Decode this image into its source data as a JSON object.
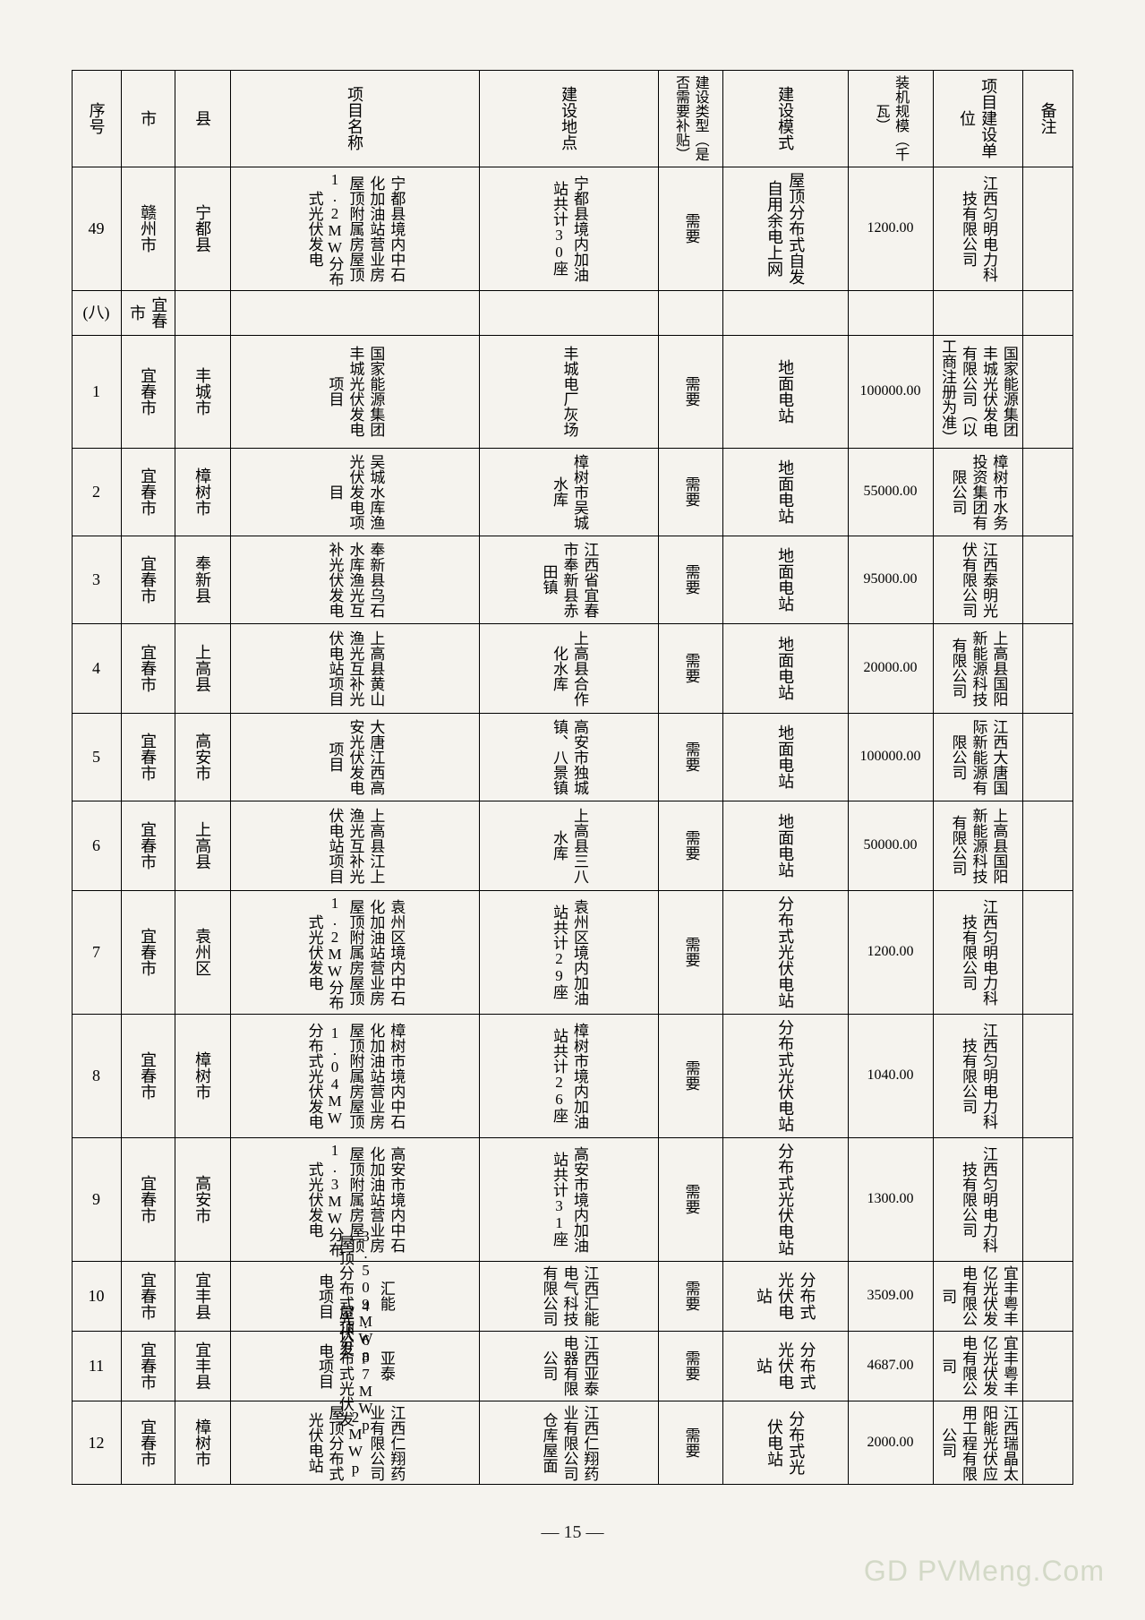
{
  "page_number_label": "— 15 —",
  "watermark": "GD PVMeng.Com",
  "columns": [
    "序号",
    "市",
    "县",
    "项目名称",
    "建设地点",
    "建设类型（是否需要补贴）",
    "建设模式",
    "装机规模（千瓦）",
    "项目建设单位",
    "备注"
  ],
  "rows": [
    {
      "seq": "49",
      "city": "赣州市",
      "county": "宁都县",
      "project": "宁都县境内中石化加油站营业房屋顶附属房屋顶1.2MW分布式光伏发电",
      "site": "宁都县境内加油站共计30座",
      "type": "需要",
      "mode": "屋顶分布式自发自用余电上网",
      "cap": "1200.00",
      "unit": "江西匀明电力科技有限公司",
      "note": ""
    },
    {
      "seq": "(八)",
      "city": "宜春市",
      "county": "",
      "project": "",
      "site": "",
      "type": "",
      "mode": "",
      "cap": "",
      "unit": "",
      "note": ""
    },
    {
      "seq": "1",
      "city": "宜春市",
      "county": "丰城市",
      "project": "国家能源集团丰城光伏发电项目",
      "site": "丰城电厂灰场",
      "type": "需要",
      "mode": "地面电站",
      "cap": "100000.00",
      "unit": "国家能源集团丰城光伏发电有限公司（以工商注册为准）",
      "note": ""
    },
    {
      "seq": "2",
      "city": "宜春市",
      "county": "樟树市",
      "project": "吴城水库渔光伏发电项目",
      "site": "樟树市吴城水库",
      "type": "需要",
      "mode": "地面电站",
      "cap": "55000.00",
      "unit": "樟树市水务投资集团有限公司",
      "note": ""
    },
    {
      "seq": "3",
      "city": "宜春市",
      "county": "奉新县",
      "project": "奉新县乌石水库渔光互补光伏发电",
      "site": "江西省宜春市奉新县赤田镇",
      "type": "需要",
      "mode": "地面电站",
      "cap": "95000.00",
      "unit": "江西泰明光伏有限公司",
      "note": ""
    },
    {
      "seq": "4",
      "city": "宜春市",
      "county": "上高县",
      "project": "上高县黄山渔光互补光伏电站项目",
      "site": "上高县合作化水库",
      "type": "需要",
      "mode": "地面电站",
      "cap": "20000.00",
      "unit": "上高县国阳新能源科技有限公司",
      "note": ""
    },
    {
      "seq": "5",
      "city": "宜春市",
      "county": "高安市",
      "project": "大唐江西高安光伏发电项目",
      "site": "高安市独城镇、八景镇",
      "type": "需要",
      "mode": "地面电站",
      "cap": "100000.00",
      "unit": "江西大唐国际新能源有限公司",
      "note": ""
    },
    {
      "seq": "6",
      "city": "宜春市",
      "county": "上高县",
      "project": "上高县江上渔光互补光伏电站项目",
      "site": "上高县三八水库",
      "type": "需要",
      "mode": "地面电站",
      "cap": "50000.00",
      "unit": "上高县国阳新能源科技有限公司",
      "note": ""
    },
    {
      "seq": "7",
      "city": "宜春市",
      "county": "袁州区",
      "project": "袁州区境内中石化加油站营业房屋顶附属房屋顶1.2MW分布式光伏发电",
      "site": "袁州区境内加油站共计29座",
      "type": "需要",
      "mode": "分布式光伏电站",
      "cap": "1200.00",
      "unit": "江西匀明电力科技有限公司",
      "note": ""
    },
    {
      "seq": "8",
      "city": "宜春市",
      "county": "樟树市",
      "project": "樟树市境内中石化加油站营业房屋顶附属房屋顶1.04MW分布式光伏发电",
      "site": "樟树市境内加油站共计26座",
      "type": "需要",
      "mode": "分布式光伏电站",
      "cap": "1040.00",
      "unit": "江西匀明电力科技有限公司",
      "note": ""
    },
    {
      "seq": "9",
      "city": "宜春市",
      "county": "高安市",
      "project": "高安市境内中石化加油站营业房屋顶附属房屋顶1.3MW分布式光伏发电",
      "site": "高安市境内加油站共计31座",
      "type": "需要",
      "mode": "分布式光伏电站",
      "cap": "1300.00",
      "unit": "江西匀明电力科技有限公司",
      "note": ""
    },
    {
      "seq": "10",
      "city": "宜春市",
      "county": "宜丰县",
      "project": "汇能3.509MWp屋顶分布式光伏发电项目",
      "site": "江西汇能电气科技有限公司",
      "type": "需要",
      "mode": "分布式光伏电站",
      "cap": "3509.00",
      "unit": "宜丰粤丰亿光伏发电有限公司",
      "note": ""
    },
    {
      "seq": "11",
      "city": "宜春市",
      "county": "宜丰县",
      "project": "亚泰4.687MWp屋顶分布式光伏发电项目",
      "site": "江西亚泰电器有限公司",
      "type": "需要",
      "mode": "分布式光伏电站",
      "cap": "4687.00",
      "unit": "宜丰粤丰亿光伏发电有限公司",
      "note": ""
    },
    {
      "seq": "12",
      "city": "宜春市",
      "county": "樟树市",
      "project": "江西仁翔药业有限公司2MWp屋顶分布式光伏电站",
      "site": "江西仁翔药业有限公司仓库屋面",
      "type": "需要",
      "mode": "分布式光伏电站",
      "cap": "2000.00",
      "unit": "江西瑞晶太阳能光伏应用工程有限公司",
      "note": ""
    }
  ],
  "colors": {
    "bg": "#f5f3ee",
    "line": "#000000",
    "wm": "#b8c4a8"
  }
}
